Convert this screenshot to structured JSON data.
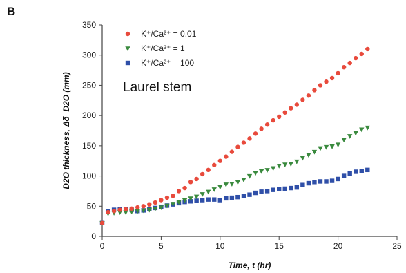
{
  "panel_label": "B",
  "annotation": "Laurel stem",
  "colors": {
    "axis": "#444444",
    "series_red": "#e84a3c",
    "series_green": "#3a8a3e",
    "series_blue": "#2f4fa8"
  },
  "chart_data": {
    "type": "scatter",
    "title": "",
    "xlabel": "Time, t (hr)",
    "ylabel": "D2O thickness, Δδ_D2O (mm)",
    "xlim": [
      0,
      25
    ],
    "ylim": [
      0,
      350
    ],
    "xticks": [
      "0",
      "5",
      "10",
      "15",
      "20",
      "25"
    ],
    "yticks": [
      "0",
      "50",
      "100",
      "150",
      "200",
      "250",
      "300",
      "350"
    ],
    "grid": false,
    "legend_position": "top-left",
    "series": [
      {
        "name": "K⁺/Ca²⁺ = 0.01",
        "marker": "circle",
        "color": "#e84a3c",
        "x": [
          0,
          0.5,
          1,
          1.5,
          2,
          2.5,
          3,
          3.5,
          4,
          4.5,
          5,
          5.5,
          6,
          6.5,
          7,
          7.5,
          8,
          8.5,
          9,
          9.5,
          10,
          10.5,
          11,
          11.5,
          12,
          12.5,
          13,
          13.5,
          14,
          14.5,
          15,
          15.5,
          16,
          16.5,
          17,
          17.5,
          18,
          18.5,
          19,
          19.5,
          20,
          20.5,
          21,
          21.5,
          22,
          22.5
        ],
        "y": [
          22,
          40,
          42,
          44,
          45,
          46,
          48,
          50,
          53,
          56,
          60,
          64,
          67,
          75,
          80,
          90,
          95,
          103,
          110,
          118,
          125,
          132,
          140,
          148,
          155,
          162,
          170,
          178,
          185,
          192,
          198,
          205,
          212,
          218,
          226,
          233,
          242,
          250,
          256,
          262,
          270,
          280,
          287,
          295,
          302,
          310
        ]
      },
      {
        "name": "K⁺/Ca²⁺ = 1",
        "marker": "triangle-down",
        "color": "#3a8a3e",
        "x": [
          0,
          0.5,
          1,
          1.5,
          2,
          2.5,
          3,
          3.5,
          4,
          4.5,
          5,
          5.5,
          6,
          6.5,
          7,
          7.5,
          8,
          8.5,
          9,
          9.5,
          10,
          10.5,
          11,
          11.5,
          12,
          12.5,
          13,
          13.5,
          14,
          14.5,
          15,
          15.5,
          16,
          16.5,
          17,
          17.5,
          18,
          18.5,
          19,
          19.5,
          20,
          20.5,
          21,
          21.5,
          22,
          22.5
        ],
        "y": [
          22,
          38,
          39,
          40,
          40,
          41,
          42,
          43,
          44,
          46,
          48,
          51,
          54,
          57,
          60,
          63,
          66,
          70,
          74,
          78,
          82,
          86,
          87,
          90,
          94,
          100,
          105,
          108,
          110,
          113,
          117,
          119,
          120,
          124,
          130,
          135,
          140,
          146,
          148,
          149,
          152,
          160,
          166,
          171,
          177,
          180
        ]
      },
      {
        "name": "K⁺/Ca²⁺ = 100",
        "marker": "square",
        "color": "#2f4fa8",
        "x": [
          0,
          0.5,
          1,
          1.5,
          2,
          2.5,
          3,
          3.5,
          4,
          4.5,
          5,
          5.5,
          6,
          6.5,
          7,
          7.5,
          8,
          8.5,
          9,
          9.5,
          10,
          10.5,
          11,
          11.5,
          12,
          12.5,
          13,
          13.5,
          14,
          14.5,
          15,
          15.5,
          16,
          16.5,
          17,
          17.5,
          18,
          18.5,
          19,
          19.5,
          20,
          20.5,
          21,
          21.5,
          22,
          22.5
        ],
        "y": [
          22,
          42,
          44,
          45,
          45,
          44,
          42,
          43,
          45,
          47,
          49,
          51,
          53,
          55,
          57,
          58,
          59,
          60,
          61,
          61,
          60,
          63,
          64,
          65,
          67,
          69,
          72,
          74,
          75,
          77,
          78,
          79,
          80,
          81,
          85,
          88,
          90,
          91,
          91,
          92,
          95,
          100,
          104,
          107,
          108,
          110
        ]
      }
    ]
  }
}
